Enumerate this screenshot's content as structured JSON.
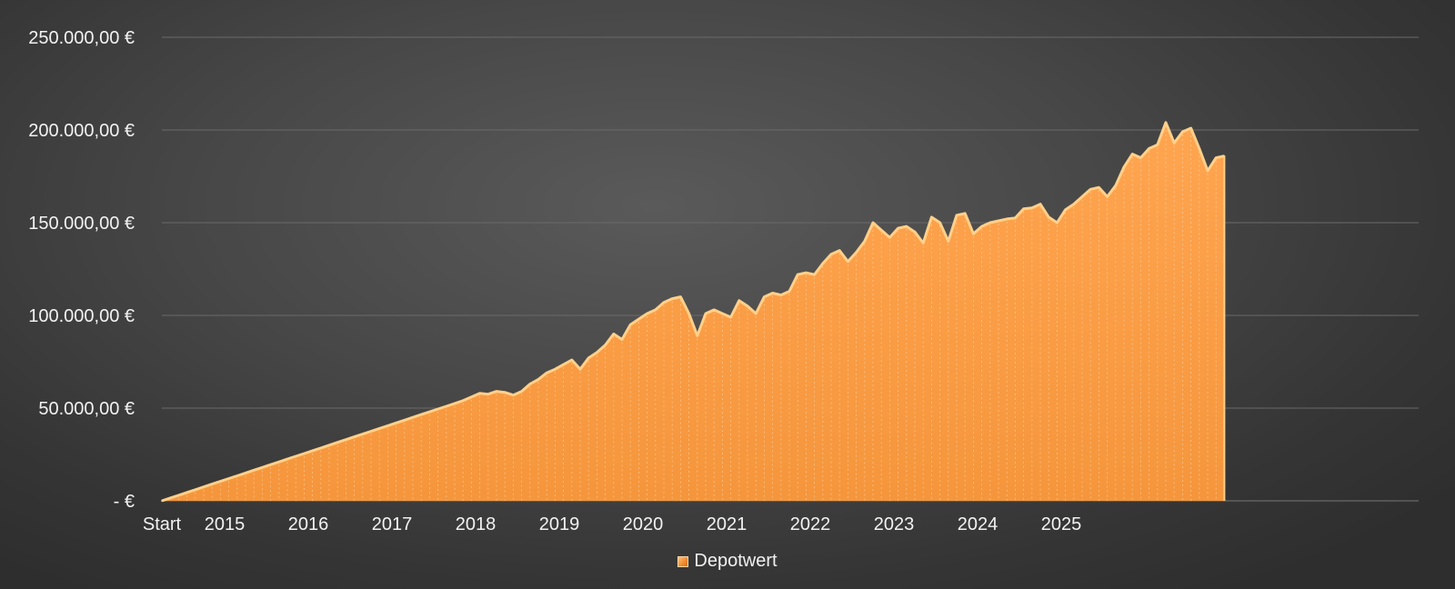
{
  "chart_data": {
    "type": "area",
    "title": "",
    "xlabel": "",
    "ylabel": "",
    "ylim": [
      0,
      250000
    ],
    "y_ticks": [
      0,
      50000,
      100000,
      150000,
      200000,
      250000
    ],
    "y_tick_labels": [
      "-   €",
      "50.000,00 €",
      "100.000,00 €",
      "150.000,00 €",
      "200.000,00 €",
      "250.000,00 €"
    ],
    "x_tick_labels": [
      "Start",
      "2015",
      "2016",
      "2017",
      "2018",
      "2019",
      "2020",
      "2021",
      "2022",
      "2023",
      "2024",
      "2025"
    ],
    "x_tick_index": [
      0,
      7.5,
      17.5,
      27.5,
      37.5,
      47.5,
      57.5,
      67.5,
      77.5,
      87.5,
      97.5,
      107.5
    ],
    "grid": true,
    "legend_position": "bottom",
    "colors": {
      "fill": "#f5963c",
      "edge": "#ffd08a",
      "grid": "#6a6a6a",
      "text": "#f2f2f2"
    },
    "series": [
      {
        "name": "Depotwert",
        "values": [
          0,
          1500,
          3000,
          4500,
          6000,
          7500,
          9000,
          10500,
          12000,
          13500,
          15000,
          16500,
          18000,
          19500,
          21000,
          22500,
          24000,
          25500,
          27000,
          28500,
          30000,
          31500,
          33000,
          34500,
          36000,
          37500,
          39000,
          40500,
          42000,
          43500,
          45000,
          46500,
          48000,
          49500,
          51000,
          52500,
          54000,
          56000,
          58000,
          57500,
          59000,
          58500,
          57000,
          59000,
          63000,
          65500,
          69000,
          71000,
          73500,
          76000,
          71000,
          77000,
          80000,
          84000,
          90000,
          87000,
          95000,
          98000,
          101000,
          103000,
          107000,
          109000,
          110000,
          101000,
          89000,
          101000,
          103000,
          101000,
          99000,
          108000,
          105000,
          101000,
          110000,
          112000,
          111000,
          113000,
          122000,
          123000,
          122000,
          128000,
          133000,
          135000,
          129000,
          134000,
          140000,
          150000,
          146000,
          142000,
          147000,
          148000,
          145000,
          139000,
          153000,
          150000,
          140000,
          154000,
          155000,
          144000,
          148000,
          150000,
          151000,
          152000,
          152500,
          157500,
          158000,
          160000,
          153000,
          150000,
          157000,
          160000,
          164000,
          168000,
          169000,
          164000,
          170000,
          180000,
          187000,
          185000,
          190000,
          192000,
          204000,
          193000,
          199000,
          201000,
          190000,
          178000,
          185000,
          186000
        ]
      }
    ]
  }
}
